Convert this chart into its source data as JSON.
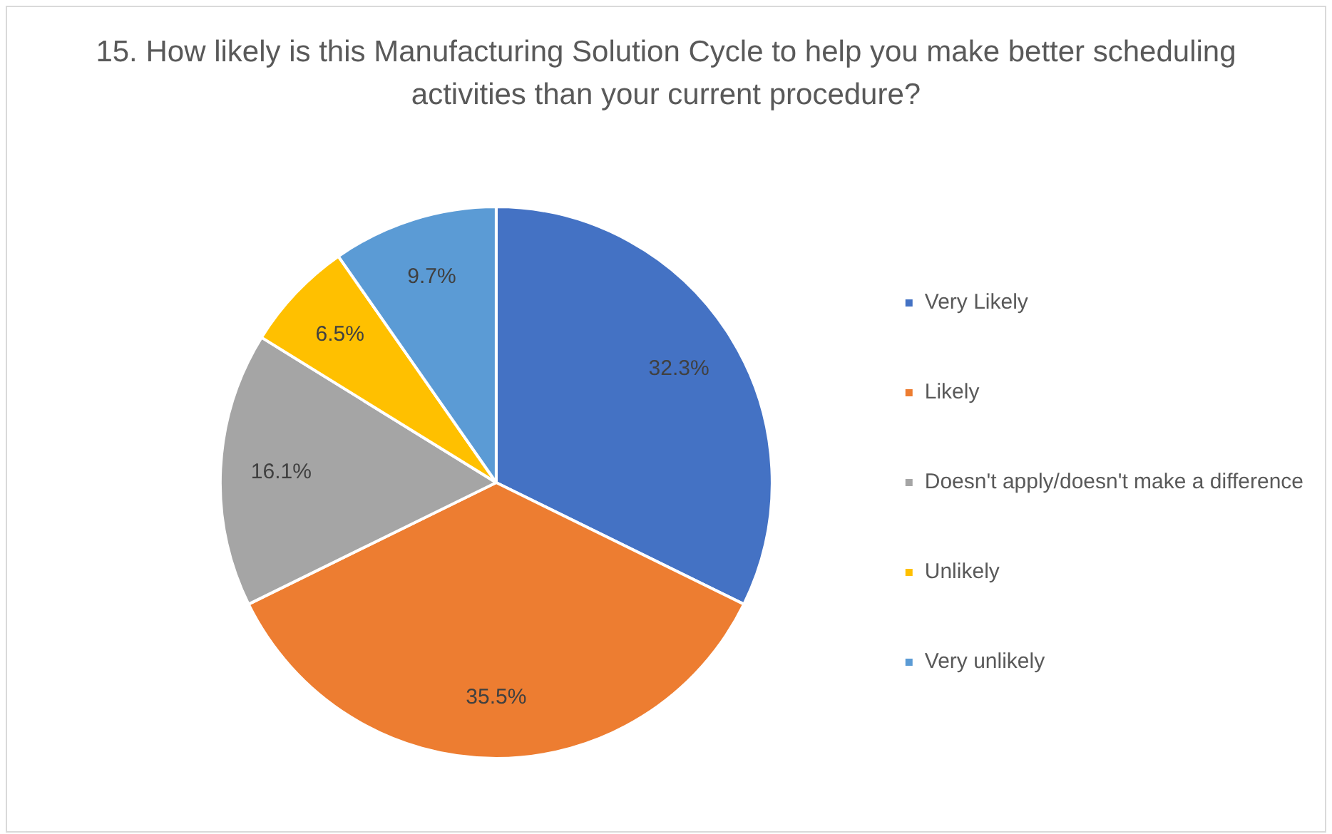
{
  "chart_data": {
    "type": "pie",
    "title": "15. How likely is this Manufacturing Solution Cycle to help you make better scheduling activities than your current procedure?",
    "categories": [
      "Very Likely",
      "Likely",
      "Doesn't apply/doesn't make a difference",
      "Unlikely",
      "Very unlikely"
    ],
    "values": [
      32.3,
      35.5,
      16.1,
      6.5,
      9.7
    ],
    "colors": [
      "#4472c4",
      "#ed7d31",
      "#a5a5a5",
      "#ffc000",
      "#5b9bd5"
    ],
    "value_labels": [
      "32.3%",
      "35.5%",
      "16.1%",
      "6.5%",
      "9.7%"
    ],
    "legend": "right"
  }
}
